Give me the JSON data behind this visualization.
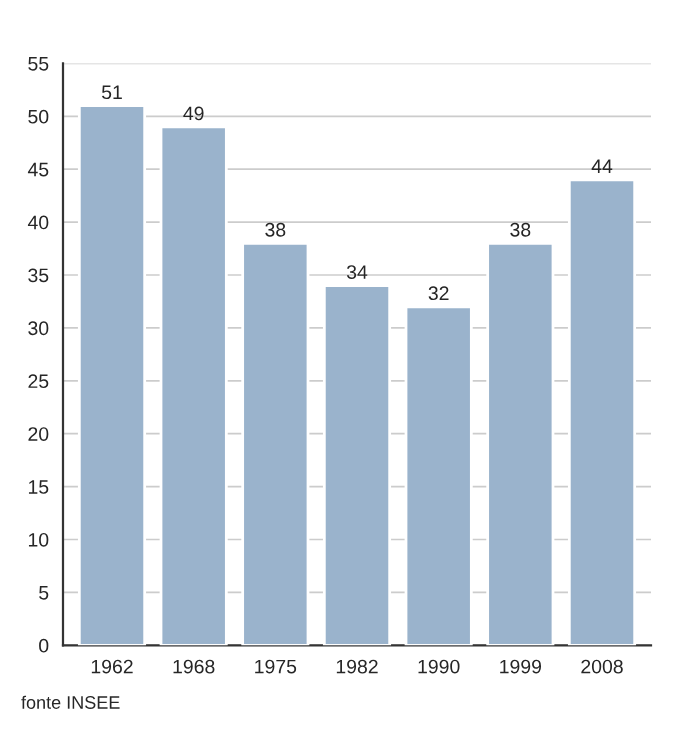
{
  "chart_data": {
    "type": "bar",
    "categories": [
      "1962",
      "1968",
      "1975",
      "1982",
      "1990",
      "1999",
      "2008"
    ],
    "values": [
      51,
      49,
      38,
      34,
      32,
      38,
      44
    ],
    "color": "#9ab3cc",
    "data_labels": true,
    "ylim": [
      0,
      55
    ],
    "yticks": [
      0,
      5,
      10,
      15,
      20,
      25,
      30,
      35,
      40,
      45,
      50,
      55
    ],
    "grid": "y",
    "annotations": [
      "fonte INSEE"
    ]
  }
}
